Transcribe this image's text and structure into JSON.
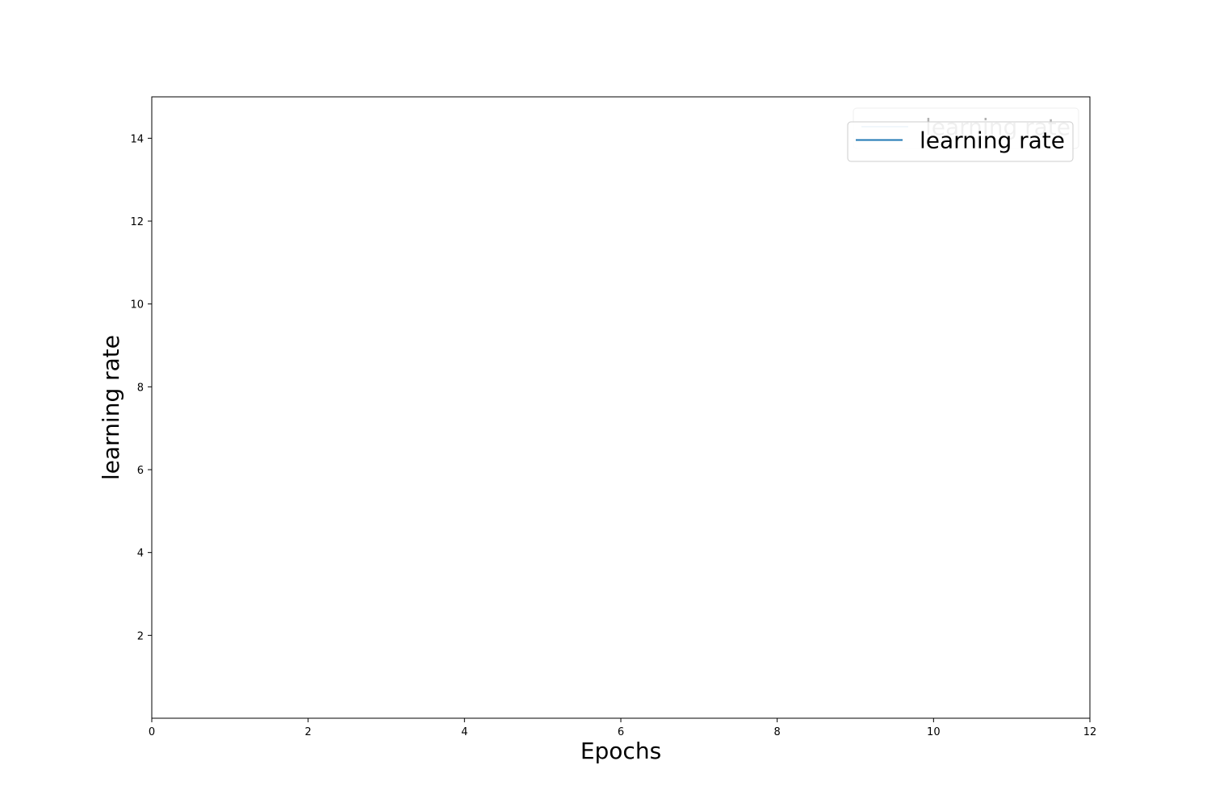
{
  "chart_data": {
    "type": "line",
    "title": "",
    "xlabel": "Epochs",
    "ylabel": "learning rate",
    "xlim": [
      0,
      12
    ],
    "ylim": [
      0,
      15
    ],
    "xticks": [
      0,
      2,
      4,
      6,
      8,
      10,
      12
    ],
    "yticks": [
      2,
      4,
      6,
      8,
      10,
      12,
      14
    ],
    "grid": false,
    "legend_position": "top-right",
    "series_color": "#1f77b4",
    "legend_entries": [
      {
        "label": "learning rate",
        "faded": true
      },
      {
        "label": "learning rate",
        "faded": false
      }
    ],
    "series": [
      {
        "name": "learning rate",
        "x": [],
        "y": []
      }
    ]
  }
}
